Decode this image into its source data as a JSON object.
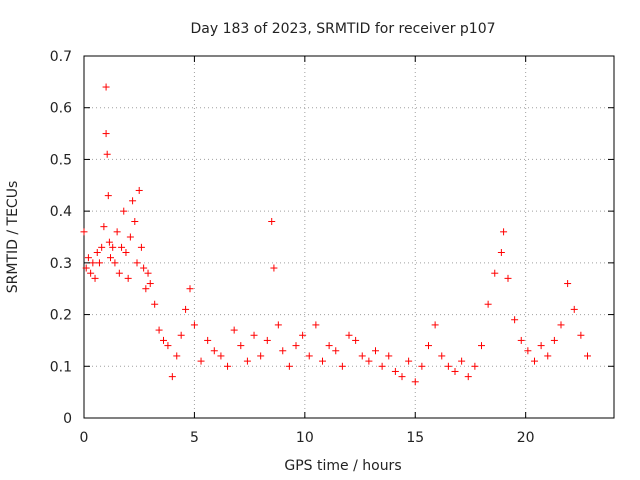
{
  "chart_data": {
    "type": "scatter",
    "title": "Day 183 of 2023, SRMTID for receiver p107",
    "xlabel": "GPS time / hours",
    "ylabel": "SRMTID / TECUs",
    "xlim": [
      0,
      24
    ],
    "ylim": [
      0,
      0.7
    ],
    "xticks": [
      0,
      5,
      10,
      15,
      20
    ],
    "xtick_labels": [
      "0",
      "5",
      "10",
      "15",
      "20"
    ],
    "yticks": [
      0,
      0.1,
      0.2,
      0.3,
      0.4,
      0.5,
      0.6,
      0.7
    ],
    "ytick_labels": [
      "0",
      "0.1",
      "0.2",
      "0.3",
      "0.4",
      "0.5",
      "0.6",
      "0.7"
    ],
    "grid": true,
    "marker": "+",
    "marker_color": "#ff0000",
    "series": [
      {
        "name": "SRMTID",
        "x": [
          0.0,
          0.1,
          0.2,
          0.3,
          0.4,
          0.5,
          0.6,
          0.7,
          0.8,
          0.9,
          1.0,
          1.0,
          1.05,
          1.1,
          1.15,
          1.2,
          1.3,
          1.4,
          1.5,
          1.6,
          1.7,
          1.8,
          1.9,
          2.0,
          2.1,
          2.2,
          2.3,
          2.4,
          2.5,
          2.6,
          2.7,
          2.8,
          2.9,
          3.0,
          3.2,
          3.4,
          3.6,
          3.8,
          4.0,
          4.2,
          4.4,
          4.6,
          4.8,
          5.0,
          5.3,
          5.6,
          5.9,
          6.2,
          6.5,
          6.8,
          7.1,
          7.4,
          7.7,
          8.0,
          8.3,
          8.5,
          8.6,
          8.8,
          9.0,
          9.3,
          9.6,
          9.9,
          10.2,
          10.5,
          10.8,
          11.1,
          11.4,
          11.7,
          12.0,
          12.3,
          12.6,
          12.9,
          13.2,
          13.5,
          13.8,
          14.1,
          14.4,
          14.7,
          15.0,
          15.3,
          15.6,
          15.9,
          16.2,
          16.5,
          16.8,
          17.1,
          17.4,
          17.7,
          18.0,
          18.3,
          18.6,
          18.9,
          19.0,
          19.2,
          19.5,
          19.8,
          20.1,
          20.4,
          20.7,
          21.0,
          21.3,
          21.6,
          21.9,
          22.2,
          22.5,
          22.8
        ],
        "y": [
          0.36,
          0.29,
          0.31,
          0.28,
          0.3,
          0.27,
          0.32,
          0.3,
          0.33,
          0.37,
          0.64,
          0.55,
          0.51,
          0.43,
          0.34,
          0.31,
          0.33,
          0.3,
          0.36,
          0.28,
          0.33,
          0.4,
          0.32,
          0.27,
          0.35,
          0.42,
          0.38,
          0.3,
          0.44,
          0.33,
          0.29,
          0.25,
          0.28,
          0.26,
          0.22,
          0.17,
          0.15,
          0.14,
          0.08,
          0.12,
          0.16,
          0.21,
          0.25,
          0.18,
          0.11,
          0.15,
          0.13,
          0.12,
          0.1,
          0.17,
          0.14,
          0.11,
          0.16,
          0.12,
          0.15,
          0.38,
          0.29,
          0.18,
          0.13,
          0.1,
          0.14,
          0.16,
          0.12,
          0.18,
          0.11,
          0.14,
          0.13,
          0.1,
          0.16,
          0.15,
          0.12,
          0.11,
          0.13,
          0.1,
          0.12,
          0.09,
          0.08,
          0.11,
          0.07,
          0.1,
          0.14,
          0.18,
          0.12,
          0.1,
          0.09,
          0.11,
          0.08,
          0.1,
          0.14,
          0.22,
          0.28,
          0.32,
          0.36,
          0.27,
          0.19,
          0.15,
          0.13,
          0.11,
          0.14,
          0.12,
          0.15,
          0.18,
          0.26,
          0.21,
          0.16,
          0.12
        ]
      }
    ]
  }
}
